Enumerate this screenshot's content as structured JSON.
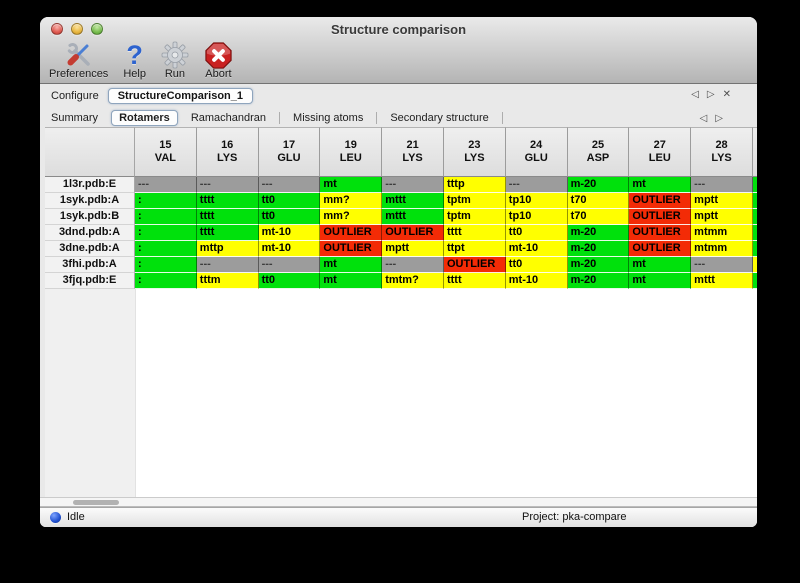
{
  "window": {
    "title": "Structure comparison",
    "status": "Idle",
    "project": "Project: pka-compare"
  },
  "toolbar": [
    {
      "id": "preferences",
      "label": "Preferences",
      "icon": "tools-icon"
    },
    {
      "id": "help",
      "label": "Help",
      "icon": "question-mark-icon"
    },
    {
      "id": "run",
      "label": "Run",
      "icon": "gear-icon"
    },
    {
      "id": "abort",
      "label": "Abort",
      "icon": "stop-x-icon"
    }
  ],
  "configure": {
    "label": "Configure",
    "value": "StructureComparison_1",
    "nav": {
      "prev": "◁",
      "next": "▷",
      "close": "✕"
    }
  },
  "tabs": {
    "active": "Rotamers",
    "items": [
      "Summary",
      "Rotamers",
      "Ramachandran",
      "Missing atoms",
      "Secondary structure"
    ],
    "nav": {
      "prev": "◁",
      "next": "▷"
    }
  },
  "colors": {
    "green": "#00e10c",
    "yellow": "#ffff00",
    "red": "#f32b06",
    "gray": "#9c9c9c"
  },
  "table": {
    "columns": [
      {
        "num": "15",
        "res": "VAL"
      },
      {
        "num": "16",
        "res": "LYS"
      },
      {
        "num": "17",
        "res": "GLU"
      },
      {
        "num": "19",
        "res": "LEU"
      },
      {
        "num": "21",
        "res": "LYS"
      },
      {
        "num": "23",
        "res": "LYS"
      },
      {
        "num": "24",
        "res": "GLU"
      },
      {
        "num": "25",
        "res": "ASP"
      },
      {
        "num": "27",
        "res": "LEU"
      },
      {
        "num": "28",
        "res": "LYS"
      }
    ],
    "rows": [
      {
        "label": "1l3r.pdb:E",
        "sliver": "green",
        "cells": [
          [
            "---",
            "gray"
          ],
          [
            "---",
            "gray"
          ],
          [
            "---",
            "gray"
          ],
          [
            "mt",
            "green"
          ],
          [
            "---",
            "gray"
          ],
          [
            "tttp",
            "yellow"
          ],
          [
            "---",
            "gray"
          ],
          [
            "m-20",
            "green"
          ],
          [
            "mt",
            "green"
          ],
          [
            "---",
            "gray"
          ]
        ]
      },
      {
        "label": "1syk.pdb:A",
        "sliver": "green",
        "cells": [
          [
            ":",
            "green"
          ],
          [
            "tttt",
            "green"
          ],
          [
            "tt0",
            "green"
          ],
          [
            "mm?",
            "yellow"
          ],
          [
            "mttt",
            "green"
          ],
          [
            "tptm",
            "yellow"
          ],
          [
            "tp10",
            "yellow"
          ],
          [
            "t70",
            "yellow"
          ],
          [
            "OUTLIER",
            "red"
          ],
          [
            "mptt",
            "yellow"
          ]
        ]
      },
      {
        "label": "1syk.pdb:B",
        "sliver": "green",
        "cells": [
          [
            ":",
            "green"
          ],
          [
            "tttt",
            "green"
          ],
          [
            "tt0",
            "green"
          ],
          [
            "mm?",
            "yellow"
          ],
          [
            "mttt",
            "green"
          ],
          [
            "tptm",
            "yellow"
          ],
          [
            "tp10",
            "yellow"
          ],
          [
            "t70",
            "yellow"
          ],
          [
            "OUTLIER",
            "red"
          ],
          [
            "mptt",
            "yellow"
          ]
        ]
      },
      {
        "label": "3dnd.pdb:A",
        "sliver": "green",
        "cells": [
          [
            ":",
            "green"
          ],
          [
            "tttt",
            "green"
          ],
          [
            "mt-10",
            "yellow"
          ],
          [
            "OUTLIER",
            "red"
          ],
          [
            "OUTLIER",
            "red"
          ],
          [
            "tttt",
            "yellow"
          ],
          [
            "tt0",
            "yellow"
          ],
          [
            "m-20",
            "green"
          ],
          [
            "OUTLIER",
            "red"
          ],
          [
            "mtmm",
            "yellow"
          ]
        ]
      },
      {
        "label": "3dne.pdb:A",
        "sliver": "green",
        "cells": [
          [
            ":",
            "green"
          ],
          [
            "mttp",
            "yellow"
          ],
          [
            "mt-10",
            "yellow"
          ],
          [
            "OUTLIER",
            "red"
          ],
          [
            "mptt",
            "yellow"
          ],
          [
            "ttpt",
            "yellow"
          ],
          [
            "mt-10",
            "yellow"
          ],
          [
            "m-20",
            "green"
          ],
          [
            "OUTLIER",
            "red"
          ],
          [
            "mtmm",
            "yellow"
          ]
        ]
      },
      {
        "label": "3fhi.pdb:A",
        "sliver": "yellow",
        "cells": [
          [
            ":",
            "green"
          ],
          [
            "---",
            "gray"
          ],
          [
            "---",
            "gray"
          ],
          [
            "mt",
            "green"
          ],
          [
            "---",
            "gray"
          ],
          [
            "OUTLIER",
            "red"
          ],
          [
            "tt0",
            "yellow"
          ],
          [
            "m-20",
            "green"
          ],
          [
            "mt",
            "green"
          ],
          [
            "---",
            "gray"
          ]
        ]
      },
      {
        "label": "3fjq.pdb:E",
        "sliver": "green",
        "cells": [
          [
            ":",
            "green"
          ],
          [
            "tttm",
            "yellow"
          ],
          [
            "tt0",
            "green"
          ],
          [
            "mt",
            "green"
          ],
          [
            "tmtm?",
            "yellow"
          ],
          [
            "tttt",
            "yellow"
          ],
          [
            "mt-10",
            "yellow"
          ],
          [
            "m-20",
            "green"
          ],
          [
            "mt",
            "green"
          ],
          [
            "mttt",
            "yellow"
          ]
        ]
      }
    ]
  }
}
